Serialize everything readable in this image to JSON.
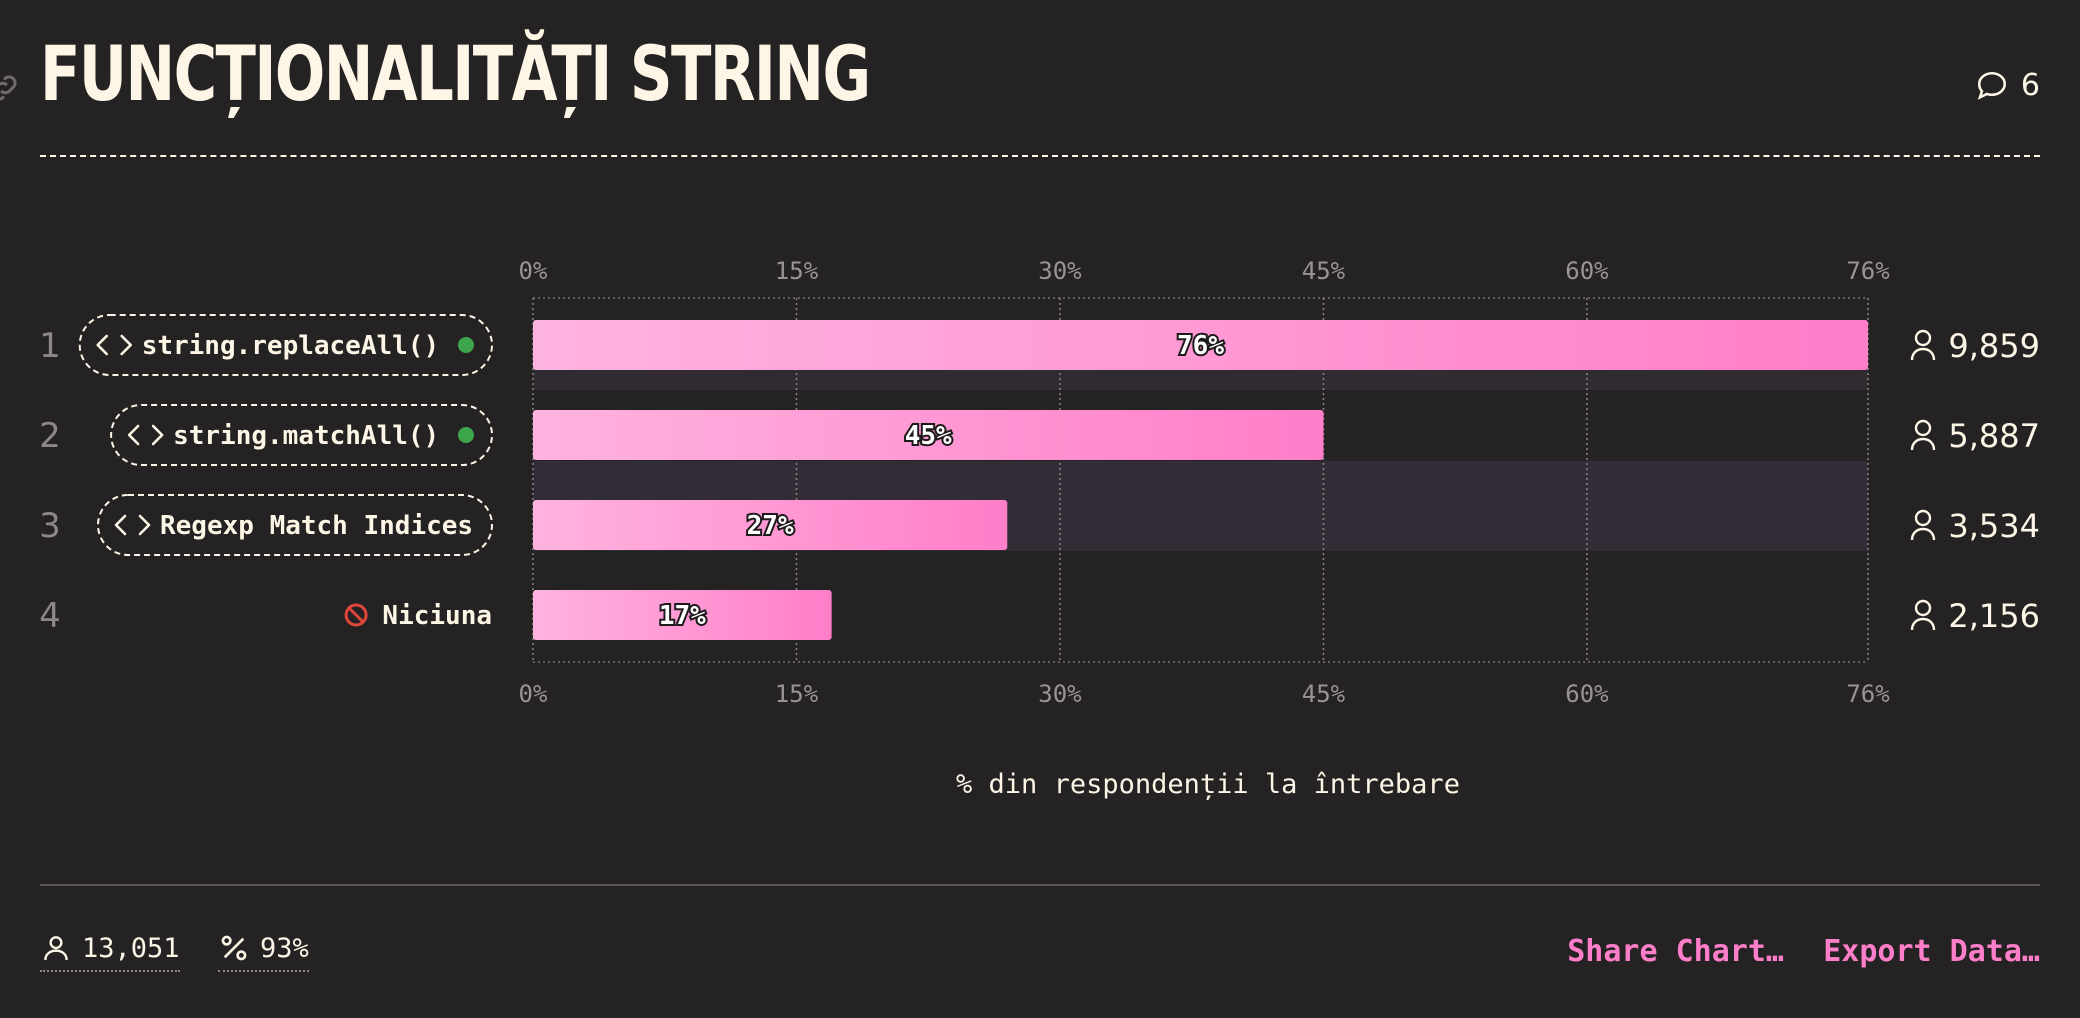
{
  "header": {
    "title": "FUNCȚIONALITĂȚI STRING",
    "comment_count": "6"
  },
  "chart_data": {
    "type": "bar",
    "orientation": "horizontal",
    "title": "FUNCȚIONALITĂȚI STRING",
    "xlabel": "% din respondenții la întrebare",
    "xlim": [
      0,
      76
    ],
    "ticks": [
      "0%",
      "15%",
      "30%",
      "45%",
      "60%",
      "76%"
    ],
    "tick_values": [
      0,
      15,
      30,
      45,
      60,
      76
    ],
    "categories": [
      "string.replaceAll()",
      "string.matchAll()",
      "Regexp Match Indices",
      "Niciuna"
    ],
    "ranks": [
      "1",
      "2",
      "3",
      "4"
    ],
    "values": [
      76,
      45,
      27,
      17
    ],
    "value_labels": [
      "76%",
      "45%",
      "27%",
      "17%"
    ],
    "counts": [
      "9,859",
      "5,887",
      "3,534",
      "2,156"
    ],
    "grid": true,
    "colors": {
      "bar_start": "#ffb3df",
      "bar_end": "#ff7ec9",
      "dot": "#3fa54a",
      "none_icon": "#e0463c"
    }
  },
  "footer": {
    "respondents": "13,051",
    "completion": "93%",
    "share_label": "Share Chart…",
    "export_label": "Export Data…"
  }
}
